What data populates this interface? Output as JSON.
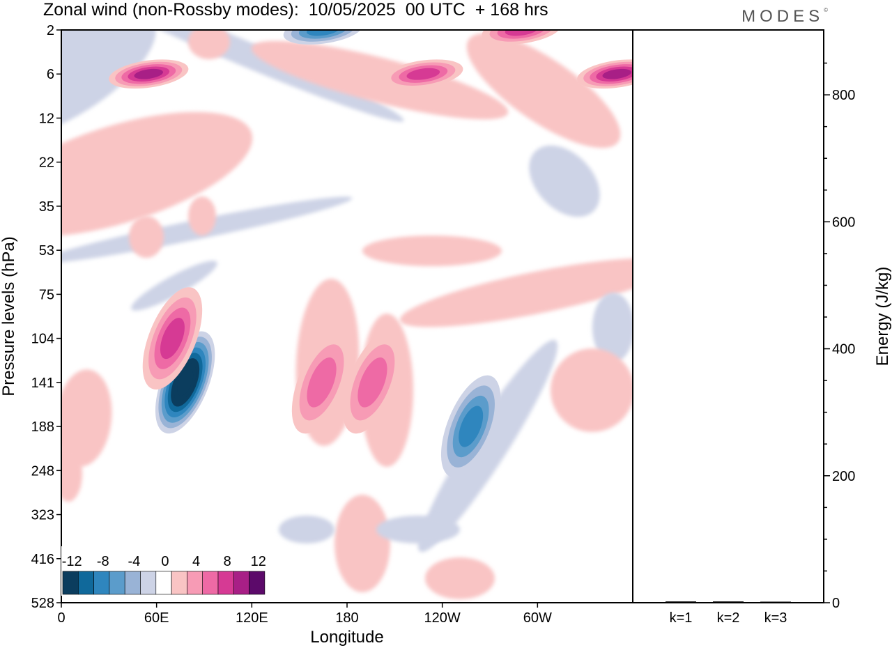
{
  "header": {
    "title": "Zonal wind (non-Rossby modes):  10/05/2025  00 UTC  + 168 hrs",
    "brand": "MODES",
    "brand_mark": "©"
  },
  "chart_data": [
    {
      "type": "heatmap",
      "title": "Zonal wind (non-Rossby modes):  10/05/2025  00 UTC  + 168 hrs",
      "xlabel": "Longitude",
      "ylabel": "Pressure levels (hPa)",
      "x_ticks": [
        "0",
        "60E",
        "120E",
        "180",
        "120W",
        "60W"
      ],
      "x_tick_degrees": [
        0,
        60,
        120,
        180,
        240,
        300
      ],
      "xlim": [
        0,
        360
      ],
      "y_ticks": [
        "2",
        "6",
        "12",
        "22",
        "35",
        "53",
        "75",
        "104",
        "141",
        "188",
        "248",
        "323",
        "416",
        "528"
      ],
      "colorbar": {
        "labels": [
          "-12",
          "-8",
          "-4",
          "0",
          "4",
          "8",
          "12"
        ],
        "levels": [
          -14,
          -12,
          -10,
          -8,
          -6,
          -4,
          -2,
          2,
          4,
          6,
          8,
          10,
          12,
          14
        ],
        "colors": [
          "#0b3d5e",
          "#10699b",
          "#2f86be",
          "#5b9ccb",
          "#99b3d6",
          "#cdd3e6",
          "#ffffff",
          "#f9c4c4",
          "#f79bb5",
          "#ee6aa5",
          "#d63a94",
          "#a81f86",
          "#5c0a6a"
        ]
      },
      "features": [
        {
          "lon": 78,
          "level": 141,
          "value": -16
        },
        {
          "lon": 55,
          "level": 6,
          "value": 10
        },
        {
          "lon": 350,
          "level": 6,
          "value": 10
        },
        {
          "lon": 70,
          "level": 104,
          "value": 8
        },
        {
          "lon": 164,
          "level": 141,
          "value": 6
        },
        {
          "lon": 196,
          "level": 141,
          "value": 6
        },
        {
          "lon": 258,
          "level": 188,
          "value": -8
        },
        {
          "lon": 165,
          "level": 2,
          "value": -8
        },
        {
          "lon": 228,
          "level": 6,
          "value": 8
        },
        {
          "lon": 290,
          "level": 2,
          "value": 8
        }
      ]
    },
    {
      "type": "bar",
      "title": "",
      "xlabel": "",
      "ylabel": "Energy (J/kg)",
      "categories": [
        "k=1",
        "k=2",
        "k=3"
      ],
      "values": [
        2,
        2,
        1
      ],
      "ylim": [
        0,
        900
      ],
      "y_ticks": [
        "0",
        "200",
        "400",
        "600",
        "800"
      ]
    }
  ]
}
